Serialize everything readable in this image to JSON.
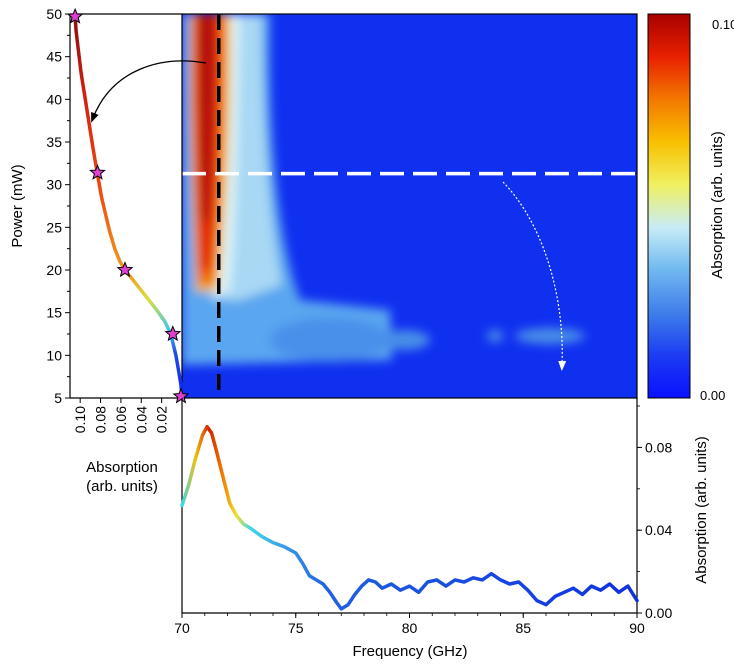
{
  "colors": {
    "heatmap_background": "#1030f0",
    "colormap": [
      "#0a10ff",
      "#1c3cf2",
      "#3f7fea",
      "#6fb8f0",
      "#c8ecf7",
      "#f0f060",
      "#f8c000",
      "#f47800",
      "#e82000",
      "#a80000"
    ],
    "marker": "#e040d0",
    "power_marker_line": "#ffffff",
    "peak_line": "#000000"
  },
  "chart_data": [
    {
      "type": "heatmap",
      "panel": "main",
      "x_range": [
        70,
        90
      ],
      "y_range": [
        5,
        50
      ],
      "value_range": [
        0.0,
        0.1
      ],
      "annotations": {
        "dashed_vertical_frequency_ghz": 71.0,
        "dashed_horizontal_power_mw": 31.3
      }
    },
    {
      "type": "colorbar",
      "panel": "colorbar",
      "ylabel": "Absorption (arb. units)",
      "range": [
        0.0,
        0.1
      ],
      "tick_labels": [
        "0.00",
        "0.10"
      ]
    },
    {
      "type": "line",
      "panel": "left",
      "xlabel": "Absorption\n(arb. units)",
      "ylabel": "Power (mW)",
      "xlim": [
        0.11,
        0.0
      ],
      "ylim": [
        5,
        50
      ],
      "x_tick_labels": [
        "0.10",
        "0.08",
        "0.06",
        "0.04",
        "0.02"
      ],
      "y_tick_labels": [
        "5",
        "10",
        "15",
        "20",
        "25",
        "30",
        "35",
        "40",
        "45",
        "50"
      ],
      "points": [
        [
          0.0,
          5
        ],
        [
          0.001,
          6.5
        ],
        [
          0.003,
          8
        ],
        [
          0.006,
          10
        ],
        [
          0.011,
          12.5
        ],
        [
          0.017,
          14
        ],
        [
          0.026,
          15.5
        ],
        [
          0.036,
          17
        ],
        [
          0.046,
          18.5
        ],
        [
          0.052,
          19.4
        ],
        [
          0.056,
          20
        ],
        [
          0.061,
          21
        ],
        [
          0.066,
          22.5
        ],
        [
          0.071,
          24.5
        ],
        [
          0.075,
          26.5
        ],
        [
          0.079,
          28.5
        ],
        [
          0.083,
          31.2
        ],
        [
          0.087,
          34
        ],
        [
          0.091,
          37
        ],
        [
          0.095,
          40
        ],
        [
          0.099,
          43
        ],
        [
          0.102,
          46
        ],
        [
          0.104,
          48
        ],
        [
          0.105,
          49.7
        ]
      ],
      "stars": [
        [
          0.105,
          49.7
        ],
        [
          0.083,
          31.4
        ],
        [
          0.056,
          20.0
        ],
        [
          0.009,
          12.5
        ],
        [
          0.001,
          5.2
        ]
      ]
    },
    {
      "type": "line",
      "panel": "bottom",
      "xlabel": "Frequency (GHz)",
      "ylabel": "Absorption (arb. units)",
      "xlim": [
        70,
        90
      ],
      "ylim": [
        0.0,
        0.1
      ],
      "x_tick_labels": [
        "70",
        "75",
        "80",
        "85",
        "90"
      ],
      "y_tick_labels": [
        "0.00",
        "0.04",
        "0.08"
      ],
      "x": [
        70.0,
        70.3,
        70.6,
        70.9,
        71.1,
        71.3,
        71.5,
        71.8,
        72.1,
        72.4,
        72.7,
        73.0,
        73.5,
        74.0,
        74.5,
        75.0,
        75.3,
        75.6,
        75.9,
        76.2,
        76.5,
        76.8,
        77.0,
        77.3,
        77.6,
        77.9,
        78.2,
        78.5,
        78.8,
        79.2,
        79.6,
        80.0,
        80.4,
        80.8,
        81.2,
        81.6,
        82.0,
        82.4,
        82.8,
        83.2,
        83.6,
        84.0,
        84.4,
        84.8,
        85.2,
        85.6,
        86.0,
        86.4,
        86.8,
        87.2,
        87.6,
        88.0,
        88.4,
        88.8,
        89.2,
        89.6,
        90.0
      ],
      "y": [
        0.052,
        0.062,
        0.075,
        0.086,
        0.09,
        0.087,
        0.079,
        0.066,
        0.053,
        0.047,
        0.043,
        0.041,
        0.037,
        0.034,
        0.032,
        0.029,
        0.024,
        0.018,
        0.016,
        0.014,
        0.01,
        0.005,
        0.002,
        0.004,
        0.009,
        0.013,
        0.016,
        0.015,
        0.012,
        0.014,
        0.011,
        0.013,
        0.01,
        0.015,
        0.016,
        0.013,
        0.016,
        0.015,
        0.017,
        0.016,
        0.019,
        0.016,
        0.014,
        0.015,
        0.011,
        0.006,
        0.004,
        0.008,
        0.01,
        0.012,
        0.009,
        0.013,
        0.011,
        0.014,
        0.01,
        0.013,
        0.006
      ]
    }
  ]
}
